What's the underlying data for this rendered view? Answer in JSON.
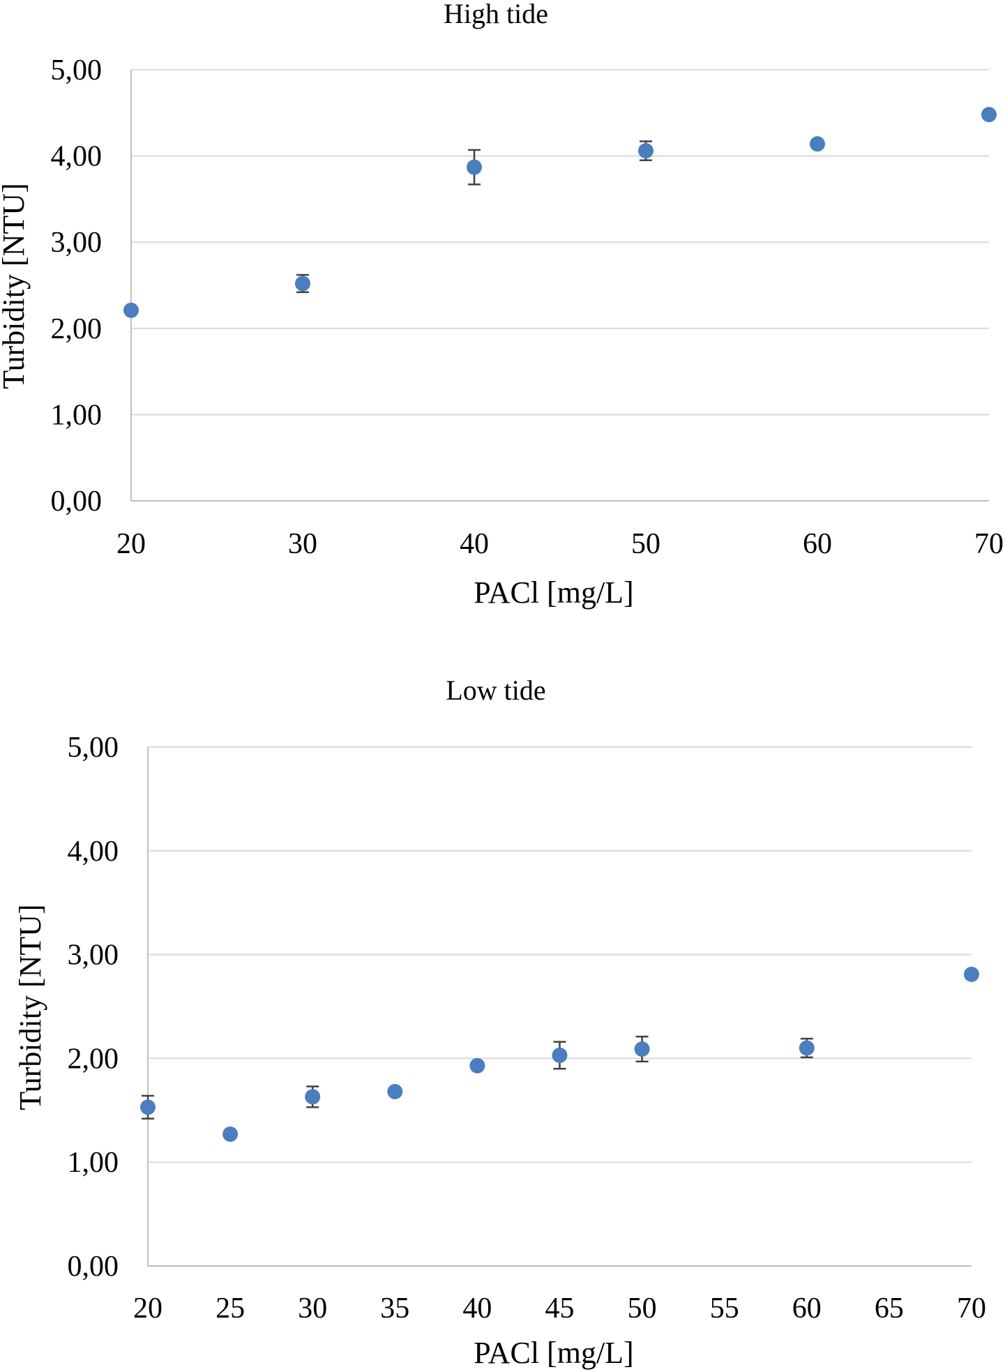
{
  "chart_data": [
    {
      "type": "scatter",
      "title": "High tide",
      "xlabel": "PACl [mg/L]",
      "ylabel": "Turbidity [NTU]",
      "xlim": [
        20,
        70
      ],
      "ylim": [
        0,
        5
      ],
      "xticks": [
        "20",
        "30",
        "40",
        "50",
        "60",
        "70"
      ],
      "yticks": [
        "0,00",
        "1,00",
        "2,00",
        "3,00",
        "4,00",
        "5,00"
      ],
      "grid": true,
      "marker_color": "#4a7ebf",
      "errorbar_color": "#404040",
      "points": [
        {
          "x": 20,
          "y": 2.21,
          "err": 0.0
        },
        {
          "x": 30,
          "y": 2.52,
          "err": 0.1
        },
        {
          "x": 40,
          "y": 3.87,
          "err": 0.2
        },
        {
          "x": 50,
          "y": 4.06,
          "err": 0.11
        },
        {
          "x": 60,
          "y": 4.14,
          "err": 0.0
        },
        {
          "x": 70,
          "y": 4.48,
          "err": 0.0
        }
      ]
    },
    {
      "type": "scatter",
      "title": "Low tide",
      "xlabel": "PACl [mg/L]",
      "ylabel": "Turbidity [NTU]",
      "xlim": [
        20,
        70
      ],
      "ylim": [
        0,
        5
      ],
      "xticks": [
        "20",
        "25",
        "30",
        "35",
        "40",
        "45",
        "50",
        "55",
        "60",
        "65",
        "70"
      ],
      "yticks": [
        "0,00",
        "1,00",
        "2,00",
        "3,00",
        "4,00",
        "5,00"
      ],
      "grid": true,
      "marker_color": "#4a7ebf",
      "errorbar_color": "#404040",
      "points": [
        {
          "x": 20,
          "y": 1.53,
          "err": 0.11
        },
        {
          "x": 25,
          "y": 1.27,
          "err": 0.0
        },
        {
          "x": 30,
          "y": 1.63,
          "err": 0.1
        },
        {
          "x": 35,
          "y": 1.68,
          "err": 0.0
        },
        {
          "x": 40,
          "y": 1.93,
          "err": 0.0
        },
        {
          "x": 45,
          "y": 2.03,
          "err": 0.13
        },
        {
          "x": 50,
          "y": 2.09,
          "err": 0.12
        },
        {
          "x": 60,
          "y": 2.1,
          "err": 0.09
        },
        {
          "x": 70,
          "y": 2.81,
          "err": 0.0
        }
      ]
    }
  ]
}
